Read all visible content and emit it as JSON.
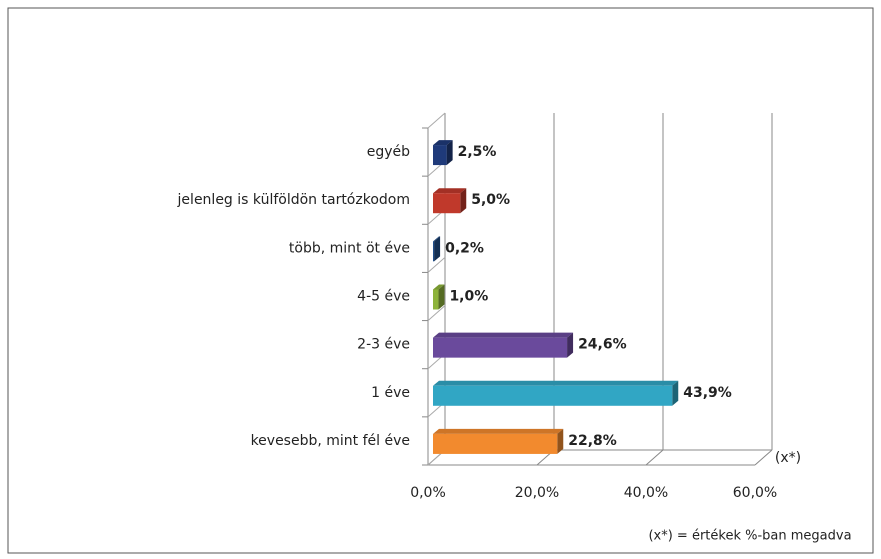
{
  "chart_data": {
    "type": "bar",
    "orientation": "horizontal",
    "categories": [
      "egyéb",
      "jelenleg is külföldön tartózkodom",
      "több, mint öt éve",
      "4-5 éve",
      "2-3 éve",
      "1 éve",
      "kevesebb, mint fél éve"
    ],
    "values": [
      2.5,
      5.0,
      0.2,
      1.0,
      24.6,
      43.9,
      22.8
    ],
    "value_labels": [
      "2,5%",
      "5,0%",
      "0,2%",
      "1,0%",
      "24,6%",
      "43,9%",
      "22,8%"
    ],
    "colors": [
      "#1f3a7a",
      "#c0392b",
      "#1f4e8c",
      "#8db33a",
      "#6a4a9c",
      "#31a6c4",
      "#f28a2e"
    ],
    "xlim": [
      0,
      60
    ],
    "xticks": [
      {
        "value": 0,
        "label": "0,0%"
      },
      {
        "value": 20,
        "label": "20,0%"
      },
      {
        "value": 40,
        "label": "40,0%"
      },
      {
        "value": 60,
        "label": "60,0%"
      }
    ],
    "axis_label": "(x*)",
    "footnote": "(x*) = értékek %-ban megadva",
    "grid": true
  }
}
